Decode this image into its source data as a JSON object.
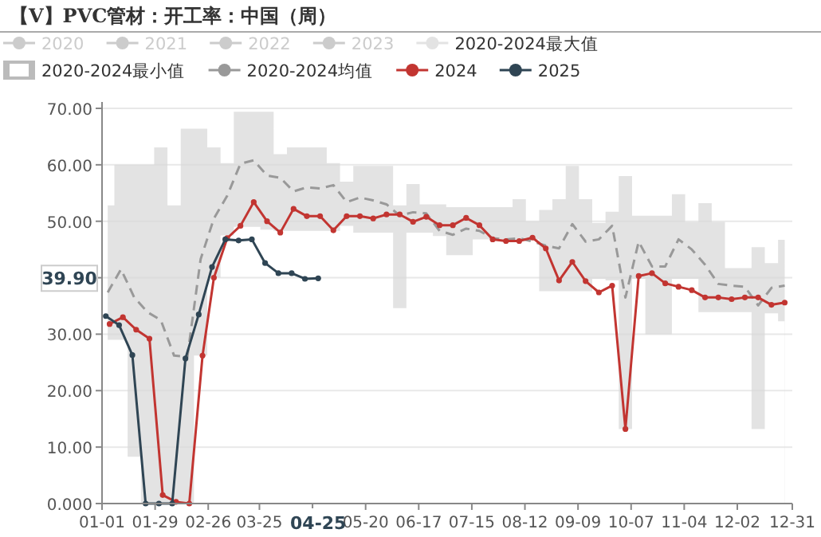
{
  "chart_data": {
    "type": "line",
    "title": "【V】PVC管材：开工率：中国（周）",
    "xlim": [
      "--01-01",
      "--12-31"
    ],
    "xticks": [
      {
        "value": "--01-01",
        "label": "01-01"
      },
      {
        "value": "--01-29",
        "label": "01-29"
      },
      {
        "value": "--02-26",
        "label": "02-26"
      },
      {
        "value": "--03-25",
        "label": "03-25"
      },
      {
        "value": "--04-22",
        "label": null
      },
      {
        "value": "--05-20",
        "label": "05-20"
      },
      {
        "value": "--06-17",
        "label": "06-17"
      },
      {
        "value": "--07-15",
        "label": "07-15"
      },
      {
        "value": "--08-12",
        "label": "08-12"
      },
      {
        "value": "--09-09",
        "label": "09-09"
      },
      {
        "value": "--10-07",
        "label": "10-07"
      },
      {
        "value": "--11-04",
        "label": "11-04"
      },
      {
        "value": "--12-02",
        "label": "12-02"
      },
      {
        "value": "--12-31",
        "label": "12-31"
      }
    ],
    "ylim": [
      0,
      70
    ],
    "yticks": [
      {
        "value": 0,
        "label": "0.000"
      },
      {
        "value": 10,
        "label": "10.00"
      },
      {
        "value": 20,
        "label": "20.00"
      },
      {
        "value": 30,
        "label": "30.00"
      },
      {
        "value": 40,
        "label": null
      },
      {
        "value": 50,
        "label": "50.00"
      },
      {
        "value": 60,
        "label": "60.00"
      },
      {
        "value": 70,
        "label": "70.00"
      }
    ],
    "grid": "y",
    "legend": "top",
    "annotations": [
      "39.90",
      "04-25"
    ],
    "x": [
      "--01-04",
      "--01-11",
      "--01-18",
      "--01-25",
      "--02-01",
      "--02-08",
      "--02-15",
      "--02-22",
      "--03-01",
      "--03-08",
      "--03-15",
      "--03-22",
      "--03-29",
      "--04-05",
      "--04-12",
      "--04-19",
      "--04-26",
      "--05-03",
      "--05-10",
      "--05-17",
      "--05-24",
      "--05-31",
      "--06-07",
      "--06-14",
      "--06-21",
      "--06-28",
      "--07-05",
      "--07-12",
      "--07-19",
      "--07-26",
      "--08-02",
      "--08-09",
      "--08-16",
      "--08-23",
      "--08-30",
      "--09-06",
      "--09-13",
      "--09-20",
      "--09-27",
      "--10-04",
      "--10-11",
      "--10-18",
      "--10-25",
      "--11-01",
      "--11-08",
      "--11-15",
      "--11-22",
      "--11-29",
      "--12-06",
      "--12-13",
      "--12-20",
      "--12-27"
    ],
    "series": [
      {
        "name": "2020",
        "color": "#cccccc",
        "values": [
          null,
          null,
          null,
          null,
          null,
          null,
          null,
          null,
          null,
          null,
          null,
          null,
          null,
          null,
          null,
          null,
          null,
          null,
          null,
          null,
          null,
          null,
          null,
          null,
          null,
          null,
          null,
          null,
          null,
          null,
          null,
          null,
          null,
          null,
          null,
          null,
          null,
          null,
          null,
          null,
          null,
          null,
          null,
          null,
          null,
          null,
          null,
          null,
          null,
          null,
          null,
          null
        ]
      },
      {
        "name": "2021",
        "color": "#cccccc",
        "values": [
          null,
          null,
          null,
          null,
          null,
          null,
          null,
          null,
          null,
          null,
          null,
          null,
          null,
          null,
          null,
          null,
          null,
          null,
          null,
          null,
          null,
          null,
          null,
          null,
          null,
          null,
          null,
          null,
          null,
          null,
          null,
          null,
          null,
          null,
          null,
          null,
          null,
          null,
          null,
          null,
          null,
          null,
          null,
          null,
          null,
          null,
          null,
          null,
          null,
          null,
          null,
          null
        ]
      },
      {
        "name": "2022",
        "color": "#cccccc",
        "values": [
          null,
          null,
          null,
          null,
          null,
          null,
          null,
          null,
          null,
          null,
          null,
          null,
          null,
          null,
          null,
          null,
          null,
          null,
          null,
          null,
          null,
          null,
          null,
          null,
          null,
          null,
          null,
          null,
          null,
          null,
          null,
          null,
          null,
          null,
          null,
          null,
          null,
          null,
          null,
          null,
          null,
          null,
          null,
          null,
          null,
          null,
          null,
          null,
          null,
          null,
          null,
          null
        ]
      },
      {
        "name": "2023",
        "color": "#cccccc",
        "values": [
          null,
          null,
          null,
          null,
          null,
          null,
          null,
          null,
          null,
          null,
          null,
          null,
          null,
          null,
          null,
          null,
          null,
          null,
          null,
          null,
          null,
          null,
          null,
          null,
          null,
          null,
          null,
          null,
          null,
          null,
          null,
          null,
          null,
          null,
          null,
          null,
          null,
          null,
          null,
          null,
          null,
          null,
          null,
          null,
          null,
          null,
          null,
          null,
          null,
          null,
          null,
          null
        ]
      },
      {
        "name": "2020-2024最大值",
        "type": "area",
        "color": "#e3e3e3",
        "values": [
          52.8,
          60,
          60,
          60,
          63.1,
          52.8,
          66.4,
          66.4,
          63.1,
          60.3,
          69.4,
          69.4,
          69.4,
          61.9,
          63.1,
          63.1,
          63.1,
          60.3,
          57,
          59.8,
          59.8,
          59.8,
          52.8,
          56.6,
          53,
          53,
          52.5,
          52.5,
          52.5,
          52.5,
          52.5,
          53.9,
          50,
          52,
          53.9,
          59.8,
          53.9,
          49.7,
          51.7,
          58,
          51,
          51,
          51,
          54.8,
          49.9,
          53.2,
          49.9,
          41.7,
          41.7,
          45.4,
          42.6,
          46.7
        ]
      },
      {
        "name": "2020-2024最小值",
        "type": "area",
        "color": "#ffffff",
        "values": [
          29,
          29,
          8.3,
          0,
          0,
          0,
          0,
          26.2,
          40,
          47.5,
          49,
          49,
          48.5,
          48.3,
          48.3,
          48.3,
          48.3,
          48.3,
          49.2,
          48,
          48,
          48,
          34.6,
          48,
          48,
          47.4,
          44,
          44,
          46.8,
          46.8,
          46.8,
          46.8,
          46.8,
          37.6,
          37.6,
          37.6,
          37.6,
          39.8,
          39.5,
          13.2,
          39.8,
          30,
          30,
          39.8,
          39.8,
          33.9,
          33.9,
          33.9,
          33.9,
          13.2,
          33.7,
          32.3
        ]
      },
      {
        "name": "2020-2024均值",
        "color": "#999999",
        "line_style": "dashed",
        "values": [
          37.4,
          41.5,
          36.5,
          33.9,
          32.5,
          26.2,
          26,
          43.3,
          50.5,
          54.5,
          60.2,
          60.8,
          58.1,
          57.7,
          55.3,
          56,
          55.8,
          56.4,
          53.4,
          54.2,
          53.7,
          53,
          51,
          51.6,
          51.4,
          48.3,
          47.6,
          48.7,
          48.3,
          47,
          46.8,
          47,
          46.4,
          45.7,
          45.2,
          49.5,
          46.4,
          46.8,
          49.2,
          36.5,
          46.4,
          42,
          42,
          46.8,
          45,
          42.3,
          38.9,
          38.6,
          38.4,
          35.1,
          38.2,
          38.6
        ]
      },
      {
        "name": "2024",
        "color": "#c23531",
        "marker": "circle",
        "x": [
          "--01-05",
          "--01-12",
          "--01-19",
          "--01-26",
          "--02-02",
          "--02-09",
          "--02-16",
          "--02-23",
          "--03-01",
          "--03-08",
          "--03-15",
          "--03-22",
          "--03-29",
          "--04-05",
          "--04-12",
          "--04-19",
          "--04-26",
          "--05-03",
          "--05-10",
          "--05-17",
          "--05-24",
          "--05-31",
          "--06-07",
          "--06-14",
          "--06-21",
          "--06-28",
          "--07-05",
          "--07-12",
          "--07-19",
          "--07-26",
          "--08-02",
          "--08-09",
          "--08-16",
          "--08-23",
          "--08-30",
          "--09-06",
          "--09-13",
          "--09-20",
          "--09-27",
          "--10-04",
          "--10-11",
          "--10-18",
          "--10-25",
          "--11-01",
          "--11-08",
          "--11-15",
          "--11-22",
          "--11-29",
          "--12-06",
          "--12-13",
          "--12-20",
          "--12-27"
        ],
        "values": [
          31.8,
          33,
          30.8,
          29.2,
          1.5,
          0.3,
          0,
          26.2,
          40,
          47,
          49.2,
          53.4,
          50,
          48,
          52.2,
          50.9,
          50.9,
          48.4,
          50.9,
          50.9,
          50.5,
          51.2,
          51.2,
          49.9,
          50.8,
          49.3,
          49.3,
          50.6,
          49.3,
          46.8,
          46.5,
          46.5,
          47.1,
          45.2,
          39.5,
          42.8,
          39.4,
          37.4,
          38.6,
          13.2,
          40.3,
          40.8,
          39,
          38.4,
          37.8,
          36.5,
          36.5,
          36.2,
          36.5,
          36.5,
          35.2,
          35.6
        ]
      },
      {
        "name": "2025",
        "color": "#2f4554",
        "marker": "circle",
        "x": [
          "--01-03",
          "--01-10",
          "--01-17",
          "--01-24",
          "--01-31",
          "--02-07",
          "--02-14",
          "--02-21",
          "--02-28",
          "--03-07",
          "--03-14",
          "--03-21",
          "--03-28",
          "--04-04",
          "--04-11",
          "--04-18",
          "--04-25"
        ],
        "values": [
          33.2,
          31.6,
          26.3,
          0,
          0,
          0,
          25.7,
          33.5,
          41.9,
          46.8,
          46.6,
          46.8,
          42.6,
          40.8,
          40.8,
          39.8,
          39.9
        ]
      }
    ]
  }
}
